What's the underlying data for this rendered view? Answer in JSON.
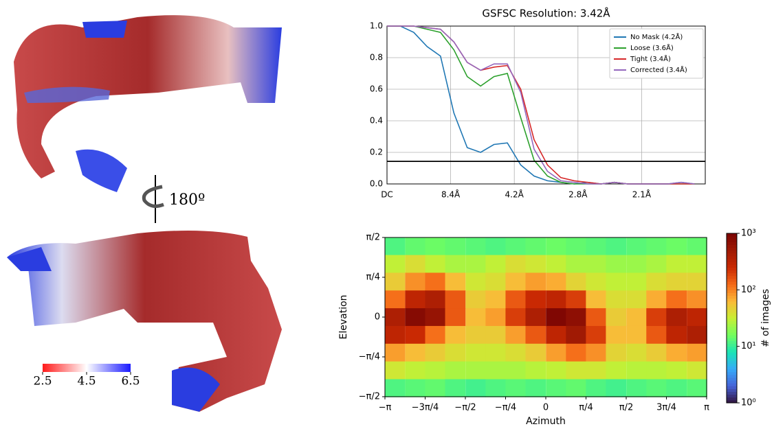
{
  "local_resolution": {
    "rotation_label": "180º",
    "range": [
      2.5,
      6.5
    ],
    "colorbar_ticks": [
      2.5,
      4.5,
      6.5
    ]
  },
  "chart_data": [
    {
      "type": "line",
      "title": "GSFSC Resolution: 3.42Å",
      "x": [
        0,
        0.025,
        0.05,
        0.075,
        0.1,
        0.125,
        0.15,
        0.175,
        0.2,
        0.225,
        0.25,
        0.275,
        0.3,
        0.325,
        0.35,
        0.375,
        0.4,
        0.425,
        0.45,
        0.475,
        0.5,
        0.525,
        0.55,
        0.575
      ],
      "series": [
        {
          "name": "No Mask (4.2Å)",
          "color": "#1f77b4",
          "values": [
            1.0,
            1.0,
            0.96,
            0.87,
            0.81,
            0.45,
            0.23,
            0.2,
            0.25,
            0.26,
            0.12,
            0.05,
            0.02,
            0.01,
            0,
            0.01,
            0,
            0.01,
            0,
            0,
            0,
            0,
            0.01,
            0
          ]
        },
        {
          "name": "Loose (3.6Å)",
          "color": "#2ca02c",
          "values": [
            1.0,
            1.0,
            1.0,
            0.98,
            0.96,
            0.85,
            0.68,
            0.62,
            0.68,
            0.7,
            0.42,
            0.15,
            0.05,
            0.01,
            0,
            0,
            0,
            0.01,
            0,
            0,
            0,
            0,
            0,
            0
          ]
        },
        {
          "name": "Tight (3.4Å)",
          "color": "#d62728",
          "values": [
            1.0,
            1.0,
            1.0,
            0.99,
            0.98,
            0.9,
            0.77,
            0.72,
            0.74,
            0.75,
            0.6,
            0.28,
            0.12,
            0.04,
            0.02,
            0.01,
            0,
            0.01,
            0,
            0,
            0,
            0,
            0,
            0
          ]
        },
        {
          "name": "Corrected (3.4Å)",
          "color": "#9467bd",
          "values": [
            1.0,
            1.0,
            1.0,
            0.99,
            0.98,
            0.9,
            0.77,
            0.72,
            0.76,
            0.76,
            0.58,
            0.22,
            0.08,
            0.02,
            0.01,
            0,
            0,
            0.01,
            0,
            0,
            0,
            0,
            0.01,
            0
          ]
        }
      ],
      "threshold": 0.143,
      "xlim": [
        0,
        0.595
      ],
      "xticks": [
        {
          "value": 0,
          "label": "DC"
        },
        {
          "value": 0.119,
          "label": "8.4Å"
        },
        {
          "value": 0.238,
          "label": "4.2Å"
        },
        {
          "value": 0.357,
          "label": "2.8Å"
        },
        {
          "value": 0.476,
          "label": "2.1Å"
        }
      ],
      "ylim": [
        0,
        1
      ],
      "yticks": [
        {
          "value": 0,
          "label": "0.0"
        },
        0.2,
        0.4,
        0.6,
        0.8,
        {
          "value": 1,
          "label": "1.0"
        }
      ],
      "grid": true,
      "legend": "upper right"
    },
    {
      "type": "heatmap",
      "xlabel": "Azimuth",
      "ylabel": "Elevation",
      "colorbar_label": "# of images",
      "x": [
        -2.95,
        -2.55,
        -2.16,
        -1.77,
        -1.37,
        -0.98,
        -0.59,
        -0.2,
        0.2,
        0.59,
        0.98,
        1.37,
        1.77,
        2.16,
        2.55,
        2.95
      ],
      "y": [
        1.4,
        1.05,
        0.7,
        0.35,
        0,
        -0.35,
        -0.7,
        -1.05,
        -1.4
      ],
      "z": [
        [
          12,
          14,
          15,
          14,
          13,
          12,
          13,
          14,
          15,
          14,
          13,
          12,
          13,
          14,
          15,
          14
        ],
        [
          30,
          40,
          30,
          25,
          25,
          30,
          40,
          35,
          30,
          25,
          25,
          22,
          22,
          25,
          30,
          30
        ],
        [
          50,
          90,
          120,
          60,
          35,
          40,
          60,
          80,
          70,
          45,
          35,
          30,
          30,
          40,
          45,
          45
        ],
        [
          120,
          300,
          400,
          150,
          50,
          60,
          150,
          250,
          300,
          200,
          60,
          40,
          40,
          70,
          120,
          90
        ],
        [
          400,
          800,
          600,
          150,
          60,
          80,
          200,
          400,
          900,
          700,
          150,
          50,
          60,
          200,
          400,
          300
        ],
        [
          300,
          250,
          120,
          60,
          50,
          50,
          80,
          150,
          300,
          500,
          200,
          60,
          60,
          150,
          300,
          400
        ],
        [
          80,
          60,
          50,
          40,
          35,
          35,
          40,
          50,
          80,
          120,
          90,
          45,
          40,
          50,
          70,
          80
        ],
        [
          35,
          30,
          28,
          25,
          25,
          25,
          25,
          28,
          30,
          35,
          35,
          30,
          28,
          28,
          30,
          35
        ],
        [
          12,
          13,
          14,
          12,
          11,
          12,
          13,
          12,
          13,
          14,
          12,
          11,
          12,
          13,
          12,
          13
        ]
      ],
      "xlim": [
        -3.14159,
        3.14159
      ],
      "xticks": [
        {
          "value": -3.14159,
          "label": "−π"
        },
        {
          "value": -2.35619,
          "label": "−3π/4"
        },
        {
          "value": -1.5708,
          "label": "−π/2"
        },
        {
          "value": -0.7854,
          "label": "−π/4"
        },
        0,
        {
          "value": 0.7854,
          "label": "π/4"
        },
        {
          "value": 1.5708,
          "label": "π/2"
        },
        {
          "value": 2.35619,
          "label": "3π/4"
        },
        {
          "value": 3.14159,
          "label": "π"
        }
      ],
      "ylim": [
        -1.5708,
        1.5708
      ],
      "yticks": [
        {
          "value": -1.5708,
          "label": "−π/2"
        },
        {
          "value": -0.7854,
          "label": "−π/4"
        },
        0,
        {
          "value": 0.7854,
          "label": "π/4"
        },
        {
          "value": 1.5708,
          "label": "π/2"
        }
      ],
      "colormap": "turbo",
      "clim": [
        1,
        1000
      ],
      "log_color": true,
      "cticks": [
        {
          "value": 1,
          "label": "10⁰"
        },
        {
          "value": 10,
          "label": "10¹"
        },
        {
          "value": 100,
          "label": "10²"
        },
        {
          "value": 1000,
          "label": "10³"
        }
      ]
    }
  ]
}
